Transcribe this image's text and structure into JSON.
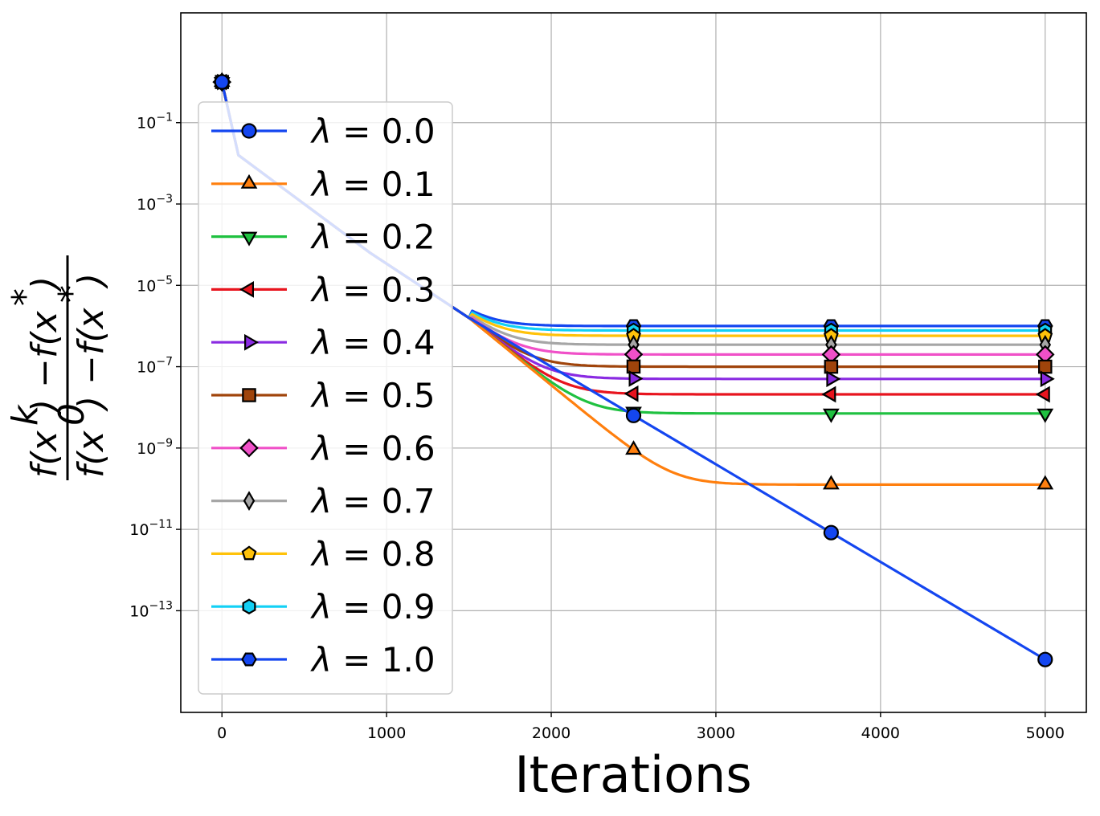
{
  "chart_data": {
    "type": "line",
    "title": "",
    "xlabel": "Iterations",
    "ylabel": {
      "numerator": "f(x^k) − f(x^*)",
      "denominator": "f(x^0) − f(x^*)"
    },
    "x_scale": "linear",
    "y_scale": "log",
    "xlim": [
      -250,
      5250
    ],
    "ylim_log10": [
      -15.5,
      1.7
    ],
    "x_ticks": [
      0,
      1000,
      2000,
      3000,
      4000,
      5000
    ],
    "x_tick_labels": [
      "0",
      "1000",
      "2000",
      "3000",
      "4000",
      "5000"
    ],
    "y_ticks_log10": [
      -1,
      -3,
      -5,
      -7,
      -9,
      -11,
      -13
    ],
    "y_tick_labels": [
      "10^−1",
      "10^−3",
      "10^−5",
      "10^−7",
      "10^−9",
      "10^−11",
      "10^−13"
    ],
    "grid": true,
    "legend_position": "upper-left",
    "marker_x": [
      0,
      2500,
      3700,
      5000
    ],
    "series": [
      {
        "name": "λ = 0.0",
        "lambda_text": "0.0",
        "color": "#1446f0",
        "marker": "circle",
        "plateau_log10": null
      },
      {
        "name": "λ = 0.1",
        "lambda_text": "0.1",
        "color": "#ff7f0e",
        "marker": "triangle-up",
        "plateau_log10": -9.9
      },
      {
        "name": "λ = 0.2",
        "lambda_text": "0.2",
        "color": "#1fc140",
        "marker": "triangle-down",
        "plateau_log10": -8.15
      },
      {
        "name": "λ = 0.3",
        "lambda_text": "0.3",
        "color": "#e8141e",
        "marker": "triangle-left",
        "plateau_log10": -7.68
      },
      {
        "name": "λ = 0.4",
        "lambda_text": "0.4",
        "color": "#8a2be2",
        "marker": "triangle-right",
        "plateau_log10": -7.3
      },
      {
        "name": "λ = 0.5",
        "lambda_text": "0.5",
        "color": "#a0440b",
        "marker": "square",
        "plateau_log10": -7.0
      },
      {
        "name": "λ = 0.6",
        "lambda_text": "0.6",
        "color": "#f050c8",
        "marker": "diamond",
        "plateau_log10": -6.7
      },
      {
        "name": "λ = 0.7",
        "lambda_text": "0.7",
        "color": "#a6a6a6",
        "marker": "thin-diamond",
        "plateau_log10": -6.46
      },
      {
        "name": "λ = 0.8",
        "lambda_text": "0.8",
        "color": "#ffc20a",
        "marker": "pentagon",
        "plateau_log10": -6.24
      },
      {
        "name": "λ = 0.9",
        "lambda_text": "0.9",
        "color": "#12d0f5",
        "marker": "hexagon",
        "plateau_log10": -6.11
      },
      {
        "name": "λ = 1.0",
        "lambda_text": "1.0",
        "color": "#1446f0",
        "marker": "hexagon-flat",
        "plateau_log10": -6.0
      }
    ],
    "common_path_log10": [
      [
        0,
        0.0
      ],
      [
        100,
        -1.8
      ],
      [
        300,
        -2.4
      ],
      [
        600,
        -3.3
      ],
      [
        900,
        -4.2
      ],
      [
        1200,
        -5.0
      ],
      [
        1500,
        -5.8
      ]
    ],
    "lambda0_end_log10": [
      5000,
      -14.2
    ]
  }
}
